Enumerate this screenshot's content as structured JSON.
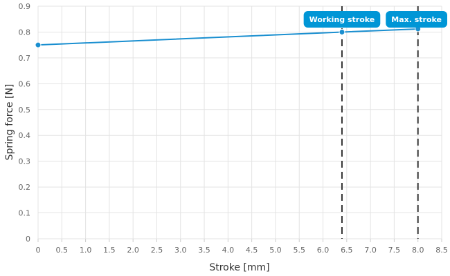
{
  "chart_data": {
    "type": "line",
    "title": "",
    "xlabel": "Stroke [mm]",
    "ylabel": "Spring force [N]",
    "xlim": [
      0,
      8.5
    ],
    "ylim": [
      0,
      0.9
    ],
    "grid": true,
    "x_ticks": [
      "0",
      "0.5",
      "1.0",
      "1.5",
      "2.0",
      "2.5",
      "3.0",
      "3.5",
      "4.0",
      "4.5",
      "5.0",
      "5.5",
      "6.0",
      "6.5",
      "7.0",
      "7.5",
      "8.0",
      "8.5"
    ],
    "y_ticks": [
      "0",
      "0.1",
      "0.2",
      "0.3",
      "0.4",
      "0.5",
      "0.6",
      "0.7",
      "0.8",
      "0.9"
    ],
    "series": [
      {
        "color": "#1a8fd0",
        "x": [
          0,
          6.4,
          8.0
        ],
        "y": [
          0.75,
          0.8,
          0.812
        ]
      }
    ],
    "annotations": [
      {
        "label": "Working stroke",
        "x": 6.4
      },
      {
        "label": "Max. stroke",
        "x": 8.0
      }
    ],
    "colors": {
      "line": "#1a8fd0",
      "annotation_bg": "#0096d6",
      "marker_line": "#333333",
      "grid": "#e3e3e3"
    }
  }
}
